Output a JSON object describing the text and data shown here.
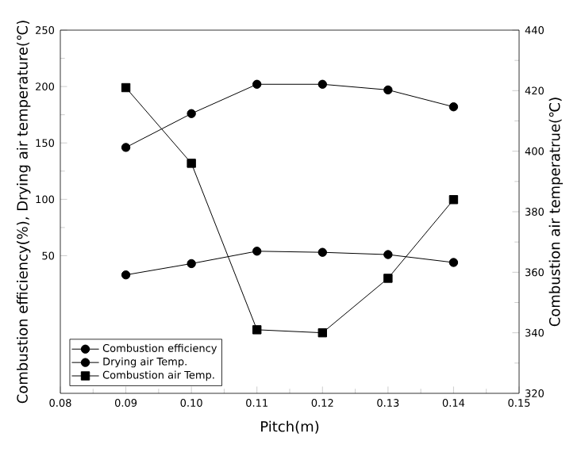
{
  "chart_data": {
    "type": "line",
    "xlabel": "Pitch(m)",
    "ylabel": "Combustion efficiency(%), Drying air temperature(℃)",
    "y2label": "Combustion air temperatrue(℃)",
    "x": [
      0.09,
      0.1,
      0.11,
      0.12,
      0.13,
      0.14
    ],
    "series": [
      {
        "name": "Combustion efficiency",
        "color": "#000000",
        "marker": "circle",
        "values": [
          33,
          43,
          54,
          53,
          51,
          44
        ]
      },
      {
        "name": "Drying air Temp.",
        "color": "#000000",
        "marker": "circle",
        "values": [
          146,
          176,
          202,
          202,
          197,
          182
        ]
      },
      {
        "name": "Combustion air Temp.",
        "color": "#000000",
        "marker": "square",
        "axis": "y2",
        "values": [
          421,
          396,
          341,
          340,
          358,
          384
        ]
      }
    ],
    "xlim": [
      0.08,
      0.15
    ],
    "xticks": [
      {
        "value": 0.08,
        "label": "0.08"
      },
      {
        "value": 0.09,
        "label": "0.09"
      },
      {
        "value": 0.1,
        "label": "0.10"
      },
      {
        "value": 0.11,
        "label": "0.11"
      },
      {
        "value": 0.12,
        "label": "0.12"
      },
      {
        "value": 0.13,
        "label": "0.13"
      },
      {
        "value": 0.14,
        "label": "0.14"
      },
      {
        "value": 0.15,
        "label": "0.15"
      }
    ],
    "ylim": [
      -72,
      250
    ],
    "yticks": [
      50,
      100,
      150,
      200,
      250
    ],
    "y2lim": [
      320,
      440
    ],
    "y2ticks": [
      320,
      340,
      360,
      380,
      400,
      420,
      440
    ],
    "legend": "bottom left",
    "grid": false,
    "line_style": "solid"
  }
}
